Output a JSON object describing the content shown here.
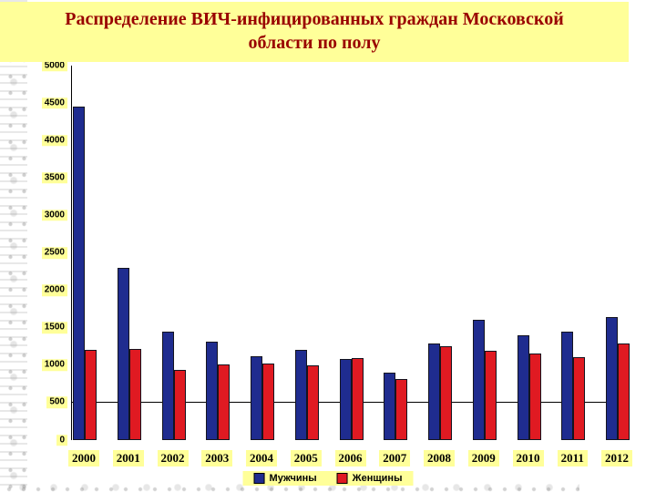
{
  "slide": {
    "title": "Распределение ВИЧ-инфицированных граждан Московской области по полу"
  },
  "colors": {
    "label_background": "#FFFF99",
    "title_text": "#990000",
    "men_bar": "#1F2C8F",
    "women_bar": "#E01A22",
    "axis_line": "#000000"
  },
  "chart_data": {
    "type": "bar",
    "title": "Распределение ВИЧ-инфицированных граждан Московской области по полу",
    "categories": [
      "2000",
      "2001",
      "2002",
      "2003",
      "2004",
      "2005",
      "2006",
      "2007",
      "2008",
      "2009",
      "2010",
      "2011",
      "2012"
    ],
    "series": [
      {
        "name": "Мужчины",
        "color": "#1F2C8F",
        "values": [
          4450,
          2300,
          1450,
          1310,
          1120,
          1210,
          1080,
          900,
          1290,
          1600,
          1400,
          1450,
          1640
        ]
      },
      {
        "name": "Женщины",
        "color": "#E01A22",
        "values": [
          1210,
          1220,
          940,
          1010,
          1020,
          1000,
          1100,
          820,
          1250,
          1190,
          1150,
          1110,
          1290
        ]
      }
    ],
    "xlabel": "",
    "ylabel": "",
    "ylim": [
      0,
      5000
    ],
    "yticks": [
      0,
      500,
      1000,
      1500,
      2000,
      2500,
      3000,
      3500,
      4000,
      4500,
      5000
    ],
    "axis_line_at": 500,
    "grid": "single horizontal line at 500",
    "legend_position": "bottom"
  }
}
